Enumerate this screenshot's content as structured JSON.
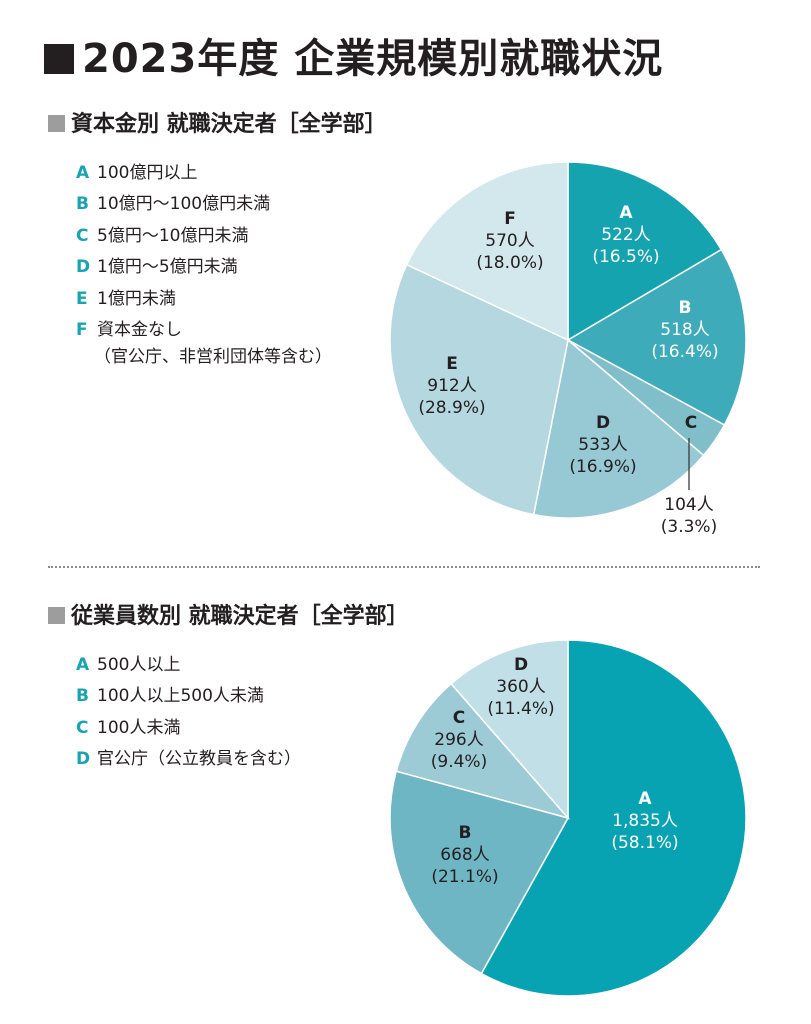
{
  "page": {
    "title": "2023年度 企業規模別就職状況"
  },
  "colors": {
    "legend_key": "#1aa3b0",
    "section_marker": "#9d9d9d"
  },
  "chart_data": [
    {
      "type": "pie",
      "title": "資本金別 就職決定者［全学部］",
      "legend_position": "left",
      "categories": [
        "A",
        "B",
        "C",
        "D",
        "E",
        "F"
      ],
      "legend": [
        {
          "key": "A",
          "label": "100億円以上"
        },
        {
          "key": "B",
          "label": "10億円〜100億円未満"
        },
        {
          "key": "C",
          "label": "5億円〜10億円未満"
        },
        {
          "key": "D",
          "label": "1億円〜5億円未満"
        },
        {
          "key": "E",
          "label": "1億円未満"
        },
        {
          "key": "F",
          "label": "資本金なし",
          "sublabel": "（官公庁、非営利団体等含む）"
        }
      ],
      "series": [
        {
          "values": [
            522,
            518,
            104,
            533,
            912,
            570
          ],
          "value_labels": [
            "522人",
            "518人",
            "104人",
            "533人",
            "912人",
            "570人"
          ],
          "percent_labels": [
            "(16.5%)",
            "(16.4%)",
            "(3.3%)",
            "(16.9%)",
            "(28.9%)",
            "(18.0%)"
          ],
          "colors": [
            "#16a3b0",
            "#3eabba",
            "#80bfca",
            "#97c9d4",
            "#b5d7df",
            "#d3e8ec"
          ]
        }
      ]
    },
    {
      "type": "pie",
      "title": "従業員数別 就職決定者［全学部］",
      "legend_position": "left",
      "categories": [
        "A",
        "B",
        "C",
        "D"
      ],
      "legend": [
        {
          "key": "A",
          "label": "500人以上"
        },
        {
          "key": "B",
          "label": "100人以上500人未満"
        },
        {
          "key": "C",
          "label": "100人未満"
        },
        {
          "key": "D",
          "label": "官公庁（公立教員を含む）"
        }
      ],
      "series": [
        {
          "values": [
            1835,
            668,
            296,
            360
          ],
          "value_labels": [
            "1,835人",
            "668人",
            "296人",
            "360人"
          ],
          "percent_labels": [
            "(58.1%)",
            "(21.1%)",
            "(9.4%)",
            "(11.4%)"
          ],
          "colors": [
            "#08a3b2",
            "#6fb6c4",
            "#9ccbd5",
            "#c1dfe6"
          ]
        }
      ]
    }
  ]
}
